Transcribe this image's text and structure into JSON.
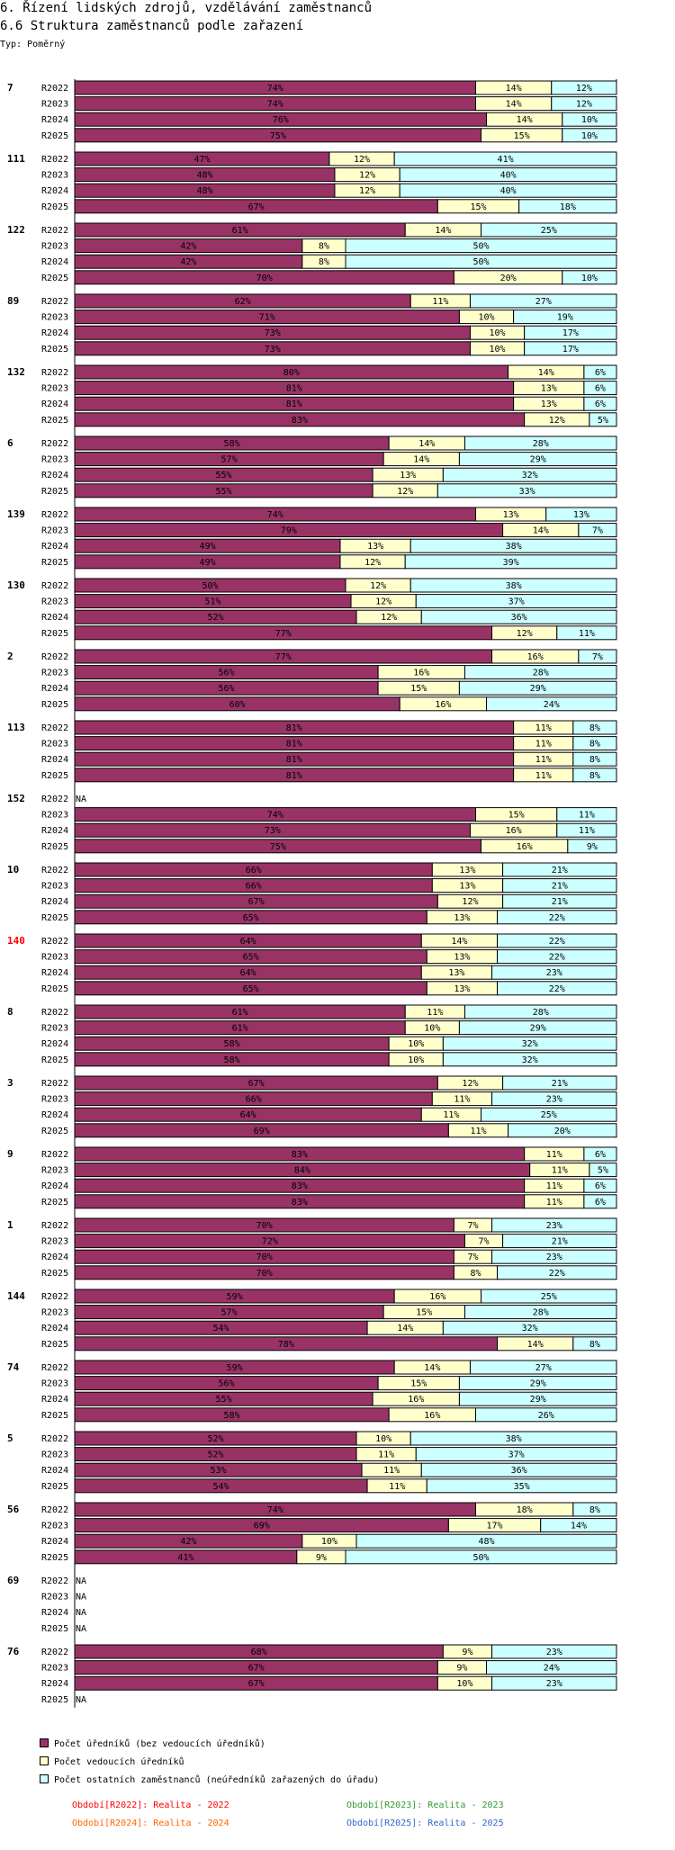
{
  "title": "6. Řízení lidských zdrojů, vzdělávání zaměstnanců",
  "subtitle": "6.6 Struktura zaměstnanců podle zařazení",
  "type_label": "Typ: Poměrný",
  "colors": {
    "s1": "#993366",
    "s2": "#FFFFCC",
    "s3": "#CCFFFF",
    "highlight": "#FF0000"
  },
  "legend": [
    "Počet úředníků (bez vedoucích úředníků)",
    "Počet vedoucích úředníků",
    "Počet ostatních zaměstnanců (neúředníků zařazených do úřadu)"
  ],
  "periods": [
    {
      "label": "Období[R2022]: Realita - 2022",
      "color": "#FF0000"
    },
    {
      "label": "Období[R2023]: Realita - 2023",
      "color": "#339933"
    },
    {
      "label": "Období[R2024]: Realita - 2024",
      "color": "#FF6600"
    },
    {
      "label": "Období[R2025]: Realita - 2025",
      "color": "#3366CC"
    }
  ],
  "chart_data": {
    "type": "bar",
    "orientation": "horizontal",
    "stacked": true,
    "unit": "%",
    "series_names": [
      "Počet úředníků (bez vedoucích úředníků)",
      "Počet vedoucích úředníků",
      "Počet ostatních zaměstnanců (neúředníků zařazených do úřadu)"
    ],
    "na_label": "NA",
    "groups": [
      {
        "id": "7",
        "rows": [
          {
            "period": "R2022",
            "values": [
              74,
              14,
              12
            ]
          },
          {
            "period": "R2023",
            "values": [
              74,
              14,
              12
            ]
          },
          {
            "period": "R2024",
            "values": [
              76,
              14,
              10
            ]
          },
          {
            "period": "R2025",
            "values": [
              75,
              15,
              10
            ]
          }
        ]
      },
      {
        "id": "111",
        "rows": [
          {
            "period": "R2022",
            "values": [
              47,
              12,
              41
            ]
          },
          {
            "period": "R2023",
            "values": [
              48,
              12,
              40
            ]
          },
          {
            "period": "R2024",
            "values": [
              48,
              12,
              40
            ]
          },
          {
            "period": "R2025",
            "values": [
              67,
              15,
              18
            ]
          }
        ]
      },
      {
        "id": "122",
        "rows": [
          {
            "period": "R2022",
            "values": [
              61,
              14,
              25
            ]
          },
          {
            "period": "R2023",
            "values": [
              42,
              8,
              50
            ]
          },
          {
            "period": "R2024",
            "values": [
              42,
              8,
              50
            ]
          },
          {
            "period": "R2025",
            "values": [
              70,
              20,
              10
            ]
          }
        ]
      },
      {
        "id": "89",
        "rows": [
          {
            "period": "R2022",
            "values": [
              62,
              11,
              27
            ]
          },
          {
            "period": "R2023",
            "values": [
              71,
              10,
              19
            ]
          },
          {
            "period": "R2024",
            "values": [
              73,
              10,
              17
            ]
          },
          {
            "period": "R2025",
            "values": [
              73,
              10,
              17
            ]
          }
        ]
      },
      {
        "id": "132",
        "rows": [
          {
            "period": "R2022",
            "values": [
              80,
              14,
              6
            ]
          },
          {
            "period": "R2023",
            "values": [
              81,
              13,
              6
            ]
          },
          {
            "period": "R2024",
            "values": [
              81,
              13,
              6
            ]
          },
          {
            "period": "R2025",
            "values": [
              83,
              12,
              5
            ]
          }
        ]
      },
      {
        "id": "6",
        "rows": [
          {
            "period": "R2022",
            "values": [
              58,
              14,
              28
            ]
          },
          {
            "period": "R2023",
            "values": [
              57,
              14,
              29
            ]
          },
          {
            "period": "R2024",
            "values": [
              55,
              13,
              32
            ]
          },
          {
            "period": "R2025",
            "values": [
              55,
              12,
              33
            ]
          }
        ]
      },
      {
        "id": "139",
        "rows": [
          {
            "period": "R2022",
            "values": [
              74,
              13,
              13
            ]
          },
          {
            "period": "R2023",
            "values": [
              79,
              14,
              7
            ]
          },
          {
            "period": "R2024",
            "values": [
              49,
              13,
              38
            ]
          },
          {
            "period": "R2025",
            "values": [
              49,
              12,
              39
            ]
          }
        ]
      },
      {
        "id": "130",
        "rows": [
          {
            "period": "R2022",
            "values": [
              50,
              12,
              38
            ]
          },
          {
            "period": "R2023",
            "values": [
              51,
              12,
              37
            ]
          },
          {
            "period": "R2024",
            "values": [
              52,
              12,
              36
            ]
          },
          {
            "period": "R2025",
            "values": [
              77,
              12,
              11
            ]
          }
        ]
      },
      {
        "id": "2",
        "rows": [
          {
            "period": "R2022",
            "values": [
              77,
              16,
              7
            ]
          },
          {
            "period": "R2023",
            "values": [
              56,
              16,
              28
            ]
          },
          {
            "period": "R2024",
            "values": [
              56,
              15,
              29
            ]
          },
          {
            "period": "R2025",
            "values": [
              60,
              16,
              24
            ]
          }
        ]
      },
      {
        "id": "113",
        "rows": [
          {
            "period": "R2022",
            "values": [
              81,
              11,
              8
            ]
          },
          {
            "period": "R2023",
            "values": [
              81,
              11,
              8
            ]
          },
          {
            "period": "R2024",
            "values": [
              81,
              11,
              8
            ]
          },
          {
            "period": "R2025",
            "values": [
              81,
              11,
              8
            ]
          }
        ]
      },
      {
        "id": "152",
        "rows": [
          {
            "period": "R2022",
            "values": null
          },
          {
            "period": "R2023",
            "values": [
              74,
              15,
              11
            ]
          },
          {
            "period": "R2024",
            "values": [
              73,
              16,
              11
            ]
          },
          {
            "period": "R2025",
            "values": [
              75,
              16,
              9
            ]
          }
        ]
      },
      {
        "id": "10",
        "rows": [
          {
            "period": "R2022",
            "values": [
              66,
              13,
              21
            ]
          },
          {
            "period": "R2023",
            "values": [
              66,
              13,
              21
            ]
          },
          {
            "period": "R2024",
            "values": [
              67,
              12,
              21
            ]
          },
          {
            "period": "R2025",
            "values": [
              65,
              13,
              22
            ]
          }
        ]
      },
      {
        "id": "140",
        "highlight": true,
        "rows": [
          {
            "period": "R2022",
            "values": [
              64,
              14,
              22
            ]
          },
          {
            "period": "R2023",
            "values": [
              65,
              13,
              22
            ]
          },
          {
            "period": "R2024",
            "values": [
              64,
              13,
              23
            ]
          },
          {
            "period": "R2025",
            "values": [
              65,
              13,
              22
            ]
          }
        ]
      },
      {
        "id": "8",
        "rows": [
          {
            "period": "R2022",
            "values": [
              61,
              11,
              28
            ]
          },
          {
            "period": "R2023",
            "values": [
              61,
              10,
              29
            ]
          },
          {
            "period": "R2024",
            "values": [
              58,
              10,
              32
            ]
          },
          {
            "period": "R2025",
            "values": [
              58,
              10,
              32
            ]
          }
        ]
      },
      {
        "id": "3",
        "rows": [
          {
            "period": "R2022",
            "values": [
              67,
              12,
              21
            ]
          },
          {
            "period": "R2023",
            "values": [
              66,
              11,
              23
            ]
          },
          {
            "period": "R2024",
            "values": [
              64,
              11,
              25
            ]
          },
          {
            "period": "R2025",
            "values": [
              69,
              11,
              20
            ]
          }
        ]
      },
      {
        "id": "9",
        "rows": [
          {
            "period": "R2022",
            "values": [
              83,
              11,
              6
            ]
          },
          {
            "period": "R2023",
            "values": [
              84,
              11,
              5
            ]
          },
          {
            "period": "R2024",
            "values": [
              83,
              11,
              6
            ]
          },
          {
            "period": "R2025",
            "values": [
              83,
              11,
              6
            ]
          }
        ]
      },
      {
        "id": "1",
        "rows": [
          {
            "period": "R2022",
            "values": [
              70,
              7,
              23
            ]
          },
          {
            "period": "R2023",
            "values": [
              72,
              7,
              21
            ]
          },
          {
            "period": "R2024",
            "values": [
              70,
              7,
              23
            ]
          },
          {
            "period": "R2025",
            "values": [
              70,
              8,
              22
            ]
          }
        ]
      },
      {
        "id": "144",
        "rows": [
          {
            "period": "R2022",
            "values": [
              59,
              16,
              25
            ]
          },
          {
            "period": "R2023",
            "values": [
              57,
              15,
              28
            ]
          },
          {
            "period": "R2024",
            "values": [
              54,
              14,
              32
            ]
          },
          {
            "period": "R2025",
            "values": [
              78,
              14,
              8
            ]
          }
        ]
      },
      {
        "id": "74",
        "rows": [
          {
            "period": "R2022",
            "values": [
              59,
              14,
              27
            ]
          },
          {
            "period": "R2023",
            "values": [
              56,
              15,
              29
            ]
          },
          {
            "period": "R2024",
            "values": [
              55,
              16,
              29
            ]
          },
          {
            "period": "R2025",
            "values": [
              58,
              16,
              26
            ]
          }
        ]
      },
      {
        "id": "5",
        "rows": [
          {
            "period": "R2022",
            "values": [
              52,
              10,
              38
            ]
          },
          {
            "period": "R2023",
            "values": [
              52,
              11,
              37
            ]
          },
          {
            "period": "R2024",
            "values": [
              53,
              11,
              36
            ]
          },
          {
            "period": "R2025",
            "values": [
              54,
              11,
              35
            ]
          }
        ]
      },
      {
        "id": "56",
        "rows": [
          {
            "period": "R2022",
            "values": [
              74,
              18,
              8
            ]
          },
          {
            "period": "R2023",
            "values": [
              69,
              17,
              14
            ]
          },
          {
            "period": "R2024",
            "values": [
              42,
              10,
              48
            ]
          },
          {
            "period": "R2025",
            "values": [
              41,
              9,
              50
            ]
          }
        ]
      },
      {
        "id": "69",
        "rows": [
          {
            "period": "R2022",
            "values": null
          },
          {
            "period": "R2023",
            "values": null
          },
          {
            "period": "R2024",
            "values": null
          },
          {
            "period": "R2025",
            "values": null
          }
        ]
      },
      {
        "id": "76",
        "rows": [
          {
            "period": "R2022",
            "values": [
              68,
              9,
              23
            ]
          },
          {
            "period": "R2023",
            "values": [
              67,
              9,
              24
            ]
          },
          {
            "period": "R2024",
            "values": [
              67,
              10,
              23
            ]
          },
          {
            "period": "R2025",
            "values": null
          }
        ]
      }
    ]
  }
}
